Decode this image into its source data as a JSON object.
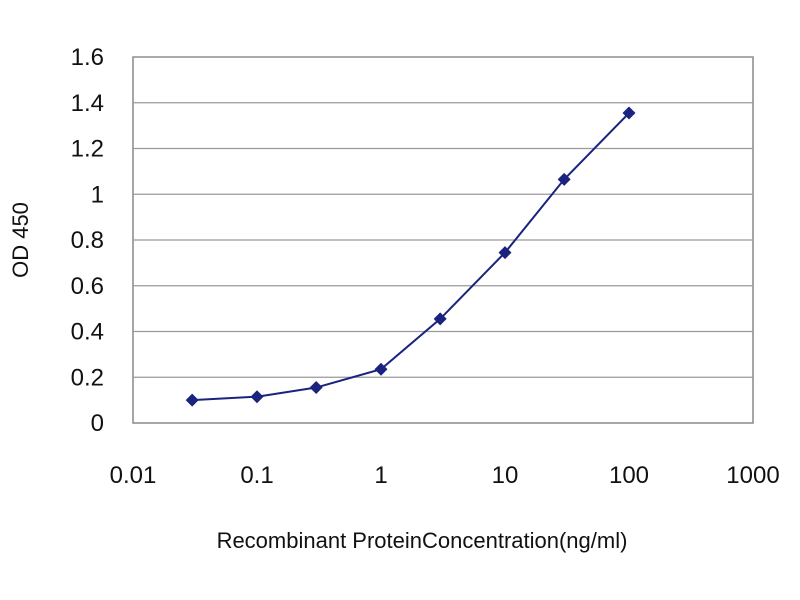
{
  "chart_data": {
    "type": "scatter",
    "title": "",
    "xlabel": "Recombinant ProteinConcentration(ng/ml)",
    "ylabel": "OD 450",
    "xscale": "log",
    "xlim": [
      0.01,
      1000
    ],
    "ylim": [
      0,
      1.6
    ],
    "x_ticks": [
      "0.01",
      "0.1",
      "1",
      "10",
      "100",
      "1000"
    ],
    "y_ticks": [
      "0",
      "0.2",
      "0.4",
      "0.6",
      "0.8",
      "1",
      "1.2",
      "1.4",
      "1.6"
    ],
    "grid": "horizontal",
    "legend": "none",
    "series": [
      {
        "x": [
          0.03,
          0.1,
          0.3,
          1,
          3,
          10,
          30,
          100
        ],
        "y": [
          0.1,
          0.115,
          0.155,
          0.235,
          0.455,
          0.745,
          1.065,
          1.355
        ],
        "color": "#1a237e"
      }
    ]
  }
}
